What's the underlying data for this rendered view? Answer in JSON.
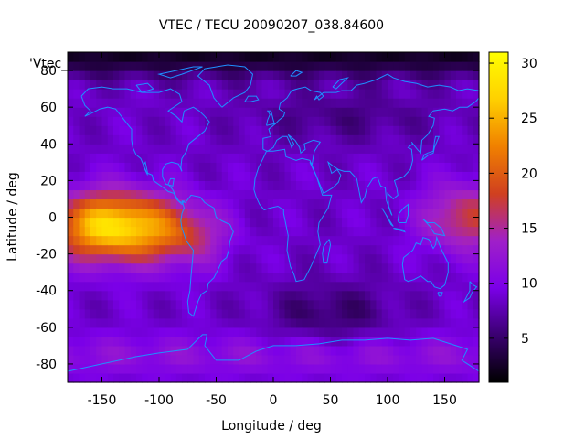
{
  "chart_data": {
    "type": "heatmap",
    "title": "VTEC / TECU 20090207_038.84600",
    "xlabel": "Longitude / deg",
    "ylabel": "Latitude / deg",
    "key_label": "'Vtec_",
    "xlim": [
      -180,
      180
    ],
    "ylim": [
      -90,
      90
    ],
    "x_ticks": [
      -150,
      -100,
      -50,
      0,
      50,
      100,
      150
    ],
    "x_tick_labels": [
      "-150",
      "-100",
      "-50",
      "0",
      "50",
      "100",
      "150"
    ],
    "y_ticks": [
      -80,
      -60,
      -40,
      -20,
      0,
      20,
      40,
      60,
      80
    ],
    "y_tick_labels": [
      "-80",
      "-60",
      "-40",
      "-20",
      "0",
      "20",
      "40",
      "60",
      "80"
    ],
    "colorbar": {
      "min": 1,
      "max": 31,
      "ticks": [
        5,
        10,
        15,
        20,
        25,
        30
      ],
      "tick_labels": [
        "5",
        "10",
        "15",
        "20",
        "25",
        "30"
      ],
      "palette": [
        "#000000",
        "#3a0070",
        "#7b00e8",
        "#a020c8",
        "#d04020",
        "#f08000",
        "#ffd000",
        "#ffff00"
      ]
    },
    "coastline_color": "#1e90ff",
    "grid_resolution_deg": [
      5,
      5
    ],
    "features": [
      {
        "name": "equatorial anomaly pacific",
        "lon_range": [
          -180,
          -30
        ],
        "lat_range": [
          -30,
          30
        ],
        "peak_vtec": 30
      },
      {
        "name": "equatorial anomaly west pacific",
        "lon_range": [
          130,
          180
        ],
        "lat_range": [
          -25,
          25
        ],
        "peak_vtec": 20
      },
      {
        "name": "arctic minimum",
        "lon_range": [
          -180,
          180
        ],
        "lat_range": [
          75,
          90
        ],
        "peak_vtec": 2
      },
      {
        "name": "southern mid-latitude minimum",
        "lon_range": [
          20,
          90
        ],
        "lat_range": [
          -60,
          -40
        ],
        "peak_vtec": 5
      }
    ]
  }
}
